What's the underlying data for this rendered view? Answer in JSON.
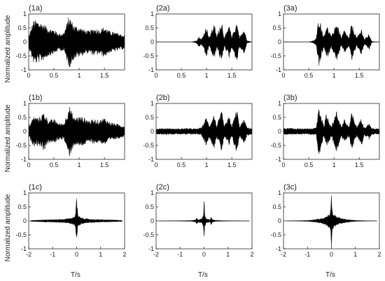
{
  "figure": {
    "ylabel": "Normalized amplitude",
    "xlabel_bottom": "T/s"
  },
  "chart_data": [
    {
      "id": "1a",
      "label": "(1a)",
      "type": "line",
      "row": 0,
      "col": 0,
      "xlim": [
        0,
        1.9
      ],
      "ylim": [
        -1,
        1
      ],
      "xticks": [
        "0",
        "0.5",
        "1",
        "1.5"
      ],
      "yticks": [
        "-1",
        "-0.5",
        "0",
        "0.5",
        "1"
      ],
      "series": [
        {
          "x": [
            0,
            0.1,
            0.2,
            0.3,
            0.4,
            0.5,
            0.6,
            0.7,
            0.8,
            0.9,
            1.0,
            1.1,
            1.2,
            1.3,
            1.4,
            1.5,
            1.6,
            1.7,
            1.8,
            1.9
          ],
          "envelope": [
            0.2,
            0.8,
            0.75,
            0.65,
            0.5,
            0.45,
            0.3,
            0.35,
            0.95,
            0.6,
            0.55,
            0.45,
            0.4,
            0.5,
            0.45,
            0.55,
            0.4,
            0.35,
            0.3,
            0.25
          ]
        }
      ]
    },
    {
      "id": "2a",
      "label": "(2a)",
      "type": "line",
      "row": 0,
      "col": 1,
      "xlim": [
        0,
        1.9
      ],
      "ylim": [
        -1,
        1
      ],
      "xticks": [
        "0",
        "0.5",
        "1",
        "1.5"
      ],
      "yticks": [
        "-1",
        "-0.5",
        "0",
        "0.5",
        "1"
      ],
      "series": [
        {
          "x": [
            0,
            0.7,
            0.8,
            0.85,
            0.9,
            1.0,
            1.05,
            1.15,
            1.2,
            1.3,
            1.35,
            1.45,
            1.5,
            1.6,
            1.65,
            1.75,
            1.8,
            1.9
          ],
          "envelope": [
            0.0,
            0.0,
            0.05,
            0.2,
            0.1,
            0.6,
            0.15,
            0.7,
            0.2,
            0.8,
            0.15,
            0.6,
            0.2,
            0.75,
            0.2,
            0.45,
            0.05,
            0.0
          ]
        }
      ]
    },
    {
      "id": "3a",
      "label": "(3a)",
      "type": "line",
      "row": 0,
      "col": 2,
      "xlim": [
        0,
        1.9
      ],
      "ylim": [
        -1,
        1
      ],
      "xticks": [
        "0",
        "0.5",
        "1",
        "1.5"
      ],
      "yticks": [
        "-1",
        "-0.5",
        "0",
        "0.5",
        "1"
      ],
      "series": [
        {
          "x": [
            0,
            0.5,
            0.6,
            0.65,
            0.7,
            0.8,
            0.85,
            0.95,
            1.05,
            1.15,
            1.2,
            1.3,
            1.35,
            1.45,
            1.55,
            1.6,
            1.7,
            1.75,
            1.9
          ],
          "envelope": [
            0.0,
            0.0,
            0.05,
            0.15,
            0.95,
            0.2,
            0.65,
            0.2,
            0.75,
            0.15,
            0.45,
            0.15,
            0.7,
            0.15,
            0.5,
            0.1,
            0.3,
            0.02,
            0.0
          ]
        }
      ]
    },
    {
      "id": "1b",
      "label": "(1b)",
      "type": "line",
      "row": 1,
      "col": 0,
      "xlim": [
        0,
        1.9
      ],
      "ylim": [
        -1,
        1
      ],
      "xticks": [
        "0",
        "0.5",
        "1",
        "1.5"
      ],
      "yticks": [
        "-1",
        "-0.5",
        "0",
        "0.5",
        "1"
      ],
      "series": [
        {
          "x": [
            0,
            0.1,
            0.2,
            0.3,
            0.4,
            0.5,
            0.6,
            0.7,
            0.8,
            0.9,
            1.0,
            1.1,
            1.2,
            1.3,
            1.4,
            1.5,
            1.6,
            1.7,
            1.8,
            1.9
          ],
          "envelope": [
            0.2,
            0.55,
            0.5,
            0.7,
            0.4,
            0.45,
            0.3,
            0.3,
            0.95,
            0.5,
            0.55,
            0.5,
            0.4,
            0.45,
            0.4,
            0.5,
            0.35,
            0.3,
            0.25,
            0.2
          ]
        }
      ]
    },
    {
      "id": "2b",
      "label": "(2b)",
      "type": "line",
      "row": 1,
      "col": 1,
      "xlim": [
        0,
        1.9
      ],
      "ylim": [
        -1,
        1
      ],
      "xticks": [
        "0",
        "0.5",
        "1",
        "1.5"
      ],
      "yticks": [
        "-1",
        "-0.5",
        "0",
        "0.5",
        "1"
      ],
      "series": [
        {
          "x": [
            0,
            0.2,
            0.4,
            0.6,
            0.8,
            0.9,
            1.0,
            1.05,
            1.15,
            1.2,
            1.3,
            1.35,
            1.45,
            1.5,
            1.6,
            1.65,
            1.75,
            1.8,
            1.9
          ],
          "envelope": [
            0.1,
            0.12,
            0.1,
            0.12,
            0.1,
            0.15,
            0.55,
            0.2,
            0.65,
            0.2,
            0.75,
            0.2,
            0.55,
            0.2,
            0.85,
            0.2,
            0.45,
            0.15,
            0.12
          ]
        }
      ]
    },
    {
      "id": "3b",
      "label": "(3b)",
      "type": "line",
      "row": 1,
      "col": 2,
      "xlim": [
        0,
        1.9
      ],
      "ylim": [
        -1,
        1
      ],
      "xticks": [
        "0",
        "0.5",
        "1",
        "1.5"
      ],
      "yticks": [
        "-1",
        "-0.5",
        "0",
        "0.5",
        "1"
      ],
      "series": [
        {
          "x": [
            0,
            0.2,
            0.4,
            0.6,
            0.65,
            0.7,
            0.8,
            0.85,
            0.95,
            1.05,
            1.15,
            1.2,
            1.3,
            1.35,
            1.45,
            1.55,
            1.6,
            1.7,
            1.75,
            1.9
          ],
          "envelope": [
            0.12,
            0.12,
            0.1,
            0.12,
            0.15,
            0.95,
            0.2,
            0.65,
            0.2,
            0.75,
            0.18,
            0.45,
            0.18,
            0.7,
            0.18,
            0.5,
            0.15,
            0.3,
            0.12,
            0.1
          ]
        }
      ]
    },
    {
      "id": "1c",
      "label": "(1c)",
      "type": "line",
      "row": 2,
      "col": 0,
      "xlim": [
        -2,
        2
      ],
      "ylim": [
        -1,
        1
      ],
      "xticks": [
        "-2",
        "-1",
        "0",
        "1",
        "2"
      ],
      "yticks": [
        "-1",
        "-0.5",
        "0",
        "0.5",
        "1"
      ],
      "series": [
        {
          "x": [
            -1.9,
            -1.5,
            -1.0,
            -0.5,
            -0.2,
            -0.05,
            0,
            0.05,
            0.2,
            0.5,
            1.0,
            1.5,
            1.9
          ],
          "envelope": [
            0.02,
            0.04,
            0.05,
            0.07,
            0.12,
            0.2,
            0.95,
            0.2,
            0.12,
            0.07,
            0.05,
            0.04,
            0.02
          ]
        }
      ]
    },
    {
      "id": "2c",
      "label": "(2c)",
      "type": "line",
      "row": 2,
      "col": 1,
      "xlim": [
        -2,
        2
      ],
      "ylim": [
        -1,
        1
      ],
      "xticks": [
        "-2",
        "-1",
        "0",
        "1",
        "2"
      ],
      "yticks": [
        "-1",
        "-0.5",
        "0",
        "0.5",
        "1"
      ],
      "series": [
        {
          "x": [
            -1.9,
            -1.0,
            -0.5,
            -0.35,
            -0.3,
            -0.25,
            -0.1,
            -0.03,
            0,
            0.03,
            0.1,
            0.25,
            0.3,
            0.35,
            0.5,
            1.0,
            1.9
          ],
          "envelope": [
            0.0,
            0.01,
            0.02,
            0.05,
            0.15,
            0.05,
            0.08,
            0.2,
            0.95,
            0.2,
            0.08,
            0.05,
            0.15,
            0.05,
            0.02,
            0.01,
            0.0
          ]
        }
      ]
    },
    {
      "id": "3c",
      "label": "(3c)",
      "type": "line",
      "row": 2,
      "col": 2,
      "xlim": [
        -2,
        2
      ],
      "ylim": [
        -1,
        1
      ],
      "xticks": [
        "-2",
        "-1",
        "0",
        "1",
        "2"
      ],
      "yticks": [
        "-1",
        "-0.5",
        "0",
        "0.5",
        "1"
      ],
      "series": [
        {
          "x": [
            -1.9,
            -1.0,
            -0.7,
            -0.4,
            -0.2,
            -0.05,
            0,
            0.05,
            0.2,
            0.4,
            0.7,
            1.0,
            1.9
          ],
          "envelope": [
            0.0,
            0.02,
            0.05,
            0.1,
            0.18,
            0.3,
            0.95,
            0.3,
            0.18,
            0.1,
            0.05,
            0.02,
            0.0
          ]
        }
      ]
    }
  ]
}
